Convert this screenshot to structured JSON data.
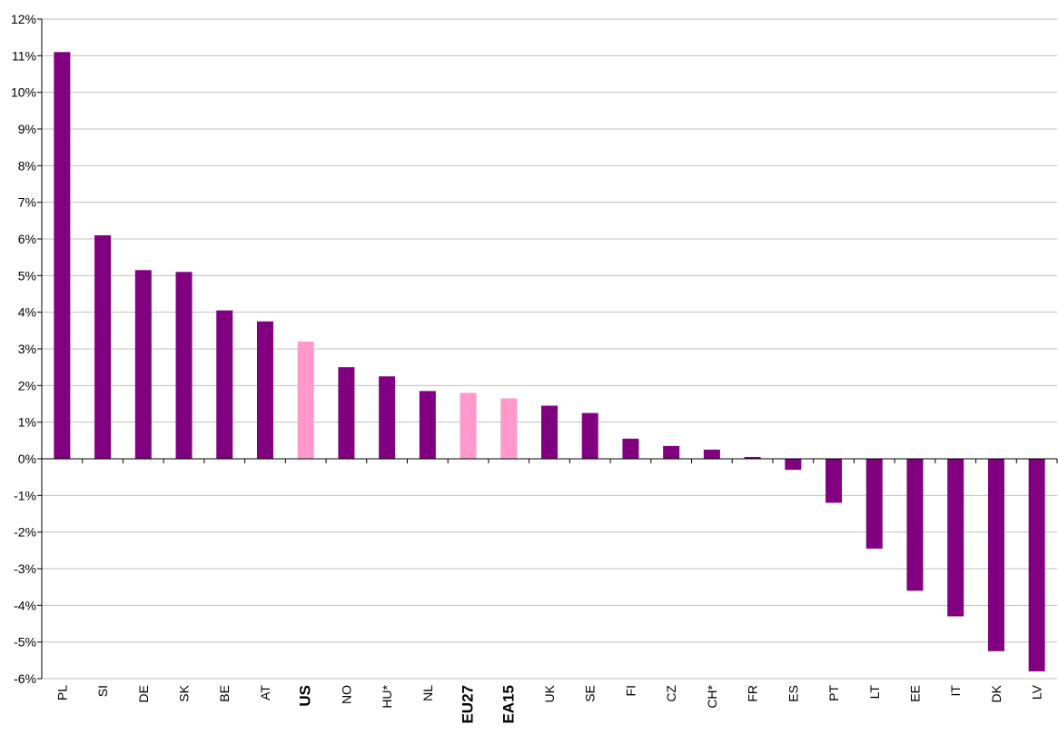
{
  "chart_data": {
    "type": "bar",
    "title": "",
    "xlabel": "",
    "ylabel": "",
    "ylim": [
      -6,
      12
    ],
    "y_tick_step": 1,
    "y_tick_format": "percent",
    "grid": true,
    "legend": "none",
    "categories": [
      "PL",
      "SI",
      "DE",
      "SK",
      "BE",
      "AT",
      "US",
      "NO",
      "HU*",
      "NL",
      "EU27",
      "EA15",
      "UK",
      "SE",
      "FI",
      "CZ",
      "CH*",
      "FR",
      "ES",
      "PT",
      "LT",
      "EE",
      "IT",
      "DK",
      "LV"
    ],
    "values": [
      11.1,
      6.1,
      5.15,
      5.1,
      4.05,
      3.75,
      3.2,
      2.5,
      2.25,
      1.85,
      1.8,
      1.65,
      1.45,
      1.25,
      0.55,
      0.35,
      0.25,
      0.05,
      -0.3,
      -1.2,
      -2.45,
      -3.6,
      -4.3,
      -5.25,
      -5.8
    ],
    "highlighted_categories": [
      "US",
      "EU27",
      "EA15"
    ],
    "bold_categories": [
      "US",
      "EU27",
      "EA15"
    ],
    "colors": {
      "default_bar": "#800080",
      "highlight_bar": "#ff99cc",
      "grid": "#c0c0c0",
      "axis": "#000000"
    }
  }
}
